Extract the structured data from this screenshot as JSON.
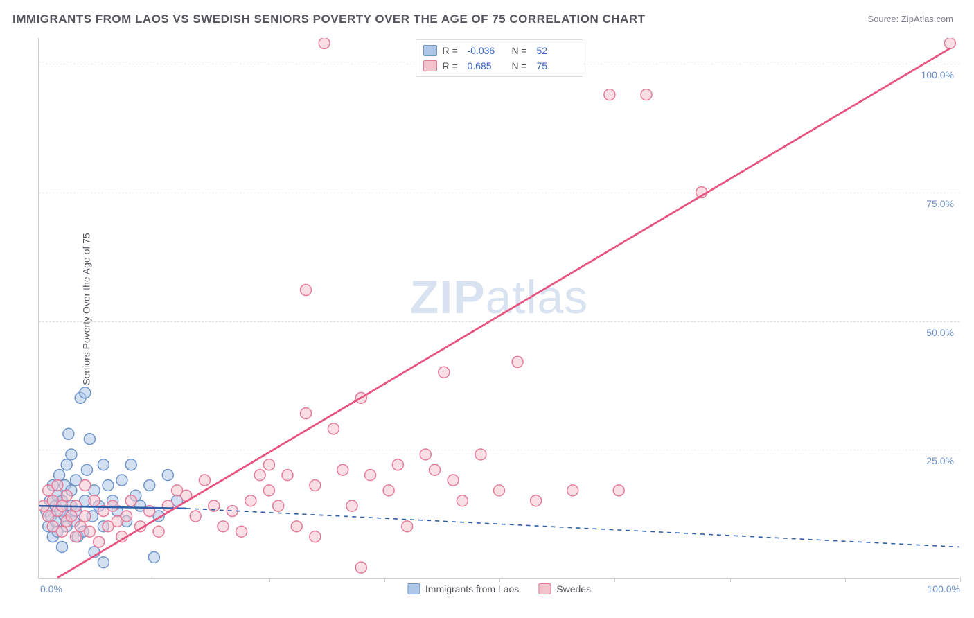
{
  "title": "IMMIGRANTS FROM LAOS VS SWEDISH SENIORS POVERTY OVER THE AGE OF 75 CORRELATION CHART",
  "source": "Source: ZipAtlas.com",
  "watermark_bold": "ZIP",
  "watermark_rest": "atlas",
  "chart": {
    "type": "scatter",
    "ylabel": "Seniors Poverty Over the Age of 75",
    "xlim": [
      0,
      100
    ],
    "ylim": [
      0,
      105
    ],
    "ytick_values": [
      25,
      50,
      75,
      100
    ],
    "ytick_labels": [
      "25.0%",
      "50.0%",
      "75.0%",
      "100.0%"
    ],
    "xtick_values": [
      0,
      12.5,
      25,
      37.5,
      50,
      62.5,
      75,
      87.5,
      100
    ],
    "xtick_labels_shown": {
      "0": "0.0%",
      "100": "100.0%"
    },
    "background_color": "#ffffff",
    "grid_color": "#dddddd",
    "axis_color": "#cccccc",
    "marker_radius": 8,
    "marker_stroke_width": 1.5,
    "series": [
      {
        "name": "Immigrants from Laos",
        "fill_color": "#aec6e8",
        "stroke_color": "#6f95c9",
        "fill_opacity": 0.55,
        "R": "-0.036",
        "N": "52",
        "trend": {
          "x1": 0,
          "y1": 14.0,
          "x2": 16,
          "y2": 13.5,
          "solid_until_x": 16,
          "dash_to_x": 100,
          "dash_y2": 6.0,
          "stroke": "#2f5fa8",
          "solid_width": 2.5,
          "dash_width": 1.6
        },
        "points": [
          [
            0.8,
            13
          ],
          [
            1.0,
            10
          ],
          [
            1.2,
            15
          ],
          [
            1.3,
            12
          ],
          [
            1.5,
            8
          ],
          [
            1.5,
            18
          ],
          [
            1.8,
            11
          ],
          [
            1.8,
            14
          ],
          [
            2.0,
            16
          ],
          [
            2.0,
            9
          ],
          [
            2.2,
            20
          ],
          [
            2.3,
            13
          ],
          [
            2.5,
            6
          ],
          [
            2.5,
            15
          ],
          [
            2.8,
            12
          ],
          [
            2.8,
            18
          ],
          [
            3.0,
            22
          ],
          [
            3.0,
            10
          ],
          [
            3.2,
            28
          ],
          [
            3.5,
            14
          ],
          [
            3.5,
            17
          ],
          [
            3.5,
            24
          ],
          [
            3.8,
            11
          ],
          [
            4.0,
            19
          ],
          [
            4.0,
            13
          ],
          [
            4.2,
            8
          ],
          [
            4.5,
            35
          ],
          [
            4.8,
            9
          ],
          [
            5.0,
            15
          ],
          [
            5.0,
            36
          ],
          [
            5.2,
            21
          ],
          [
            5.5,
            27
          ],
          [
            5.8,
            12
          ],
          [
            6.0,
            5
          ],
          [
            6.0,
            17
          ],
          [
            6.5,
            14
          ],
          [
            7.0,
            22
          ],
          [
            7.0,
            10
          ],
          [
            7.0,
            3
          ],
          [
            7.5,
            18
          ],
          [
            8.0,
            15
          ],
          [
            8.5,
            13
          ],
          [
            9.0,
            19
          ],
          [
            9.5,
            11
          ],
          [
            10.0,
            22
          ],
          [
            10.5,
            16
          ],
          [
            11.0,
            14
          ],
          [
            12.0,
            18
          ],
          [
            12.5,
            4
          ],
          [
            13.0,
            12
          ],
          [
            14.0,
            20
          ],
          [
            15.0,
            15
          ]
        ]
      },
      {
        "name": "Swedes",
        "fill_color": "#f4c2cd",
        "stroke_color": "#e67a99",
        "fill_opacity": 0.55,
        "R": "0.685",
        "N": "75",
        "trend": {
          "x1": 2,
          "y1": 0,
          "x2": 99,
          "y2": 103,
          "stroke": "#e75480",
          "width": 2.8
        },
        "points": [
          [
            0.5,
            14
          ],
          [
            1.0,
            12
          ],
          [
            1.0,
            17
          ],
          [
            1.5,
            10
          ],
          [
            1.5,
            15
          ],
          [
            2.0,
            13
          ],
          [
            2.0,
            18
          ],
          [
            2.5,
            9
          ],
          [
            2.5,
            14
          ],
          [
            3.0,
            11
          ],
          [
            3.0,
            16
          ],
          [
            3.5,
            12
          ],
          [
            4.0,
            8
          ],
          [
            4.0,
            14
          ],
          [
            4.5,
            10
          ],
          [
            5.0,
            18
          ],
          [
            5.0,
            12
          ],
          [
            5.5,
            9
          ],
          [
            6.0,
            15
          ],
          [
            6.5,
            7
          ],
          [
            7.0,
            13
          ],
          [
            7.5,
            10
          ],
          [
            8.0,
            14
          ],
          [
            8.5,
            11
          ],
          [
            9.0,
            8
          ],
          [
            9.5,
            12
          ],
          [
            10.0,
            15
          ],
          [
            11.0,
            10
          ],
          [
            12.0,
            13
          ],
          [
            13.0,
            9
          ],
          [
            14.0,
            14
          ],
          [
            15.0,
            17
          ],
          [
            16.0,
            16
          ],
          [
            17.0,
            12
          ],
          [
            18.0,
            19
          ],
          [
            19.0,
            14
          ],
          [
            20.0,
            10
          ],
          [
            21.0,
            13
          ],
          [
            22.0,
            9
          ],
          [
            23.0,
            15
          ],
          [
            24.0,
            20
          ],
          [
            25.0,
            17
          ],
          [
            25.0,
            22
          ],
          [
            26.0,
            14
          ],
          [
            27.0,
            20
          ],
          [
            28.0,
            10
          ],
          [
            29.0,
            56
          ],
          [
            29.0,
            32
          ],
          [
            30.0,
            8
          ],
          [
            30.0,
            18
          ],
          [
            31.0,
            104
          ],
          [
            32.0,
            29
          ],
          [
            33.0,
            21
          ],
          [
            34.0,
            14
          ],
          [
            35.0,
            35
          ],
          [
            35.0,
            2
          ],
          [
            36.0,
            20
          ],
          [
            38.0,
            17
          ],
          [
            39.0,
            22
          ],
          [
            40.0,
            10
          ],
          [
            42.0,
            24
          ],
          [
            43.0,
            21
          ],
          [
            44.0,
            40
          ],
          [
            45.0,
            19
          ],
          [
            46.0,
            15
          ],
          [
            48.0,
            24
          ],
          [
            50.0,
            17
          ],
          [
            52.0,
            42
          ],
          [
            54.0,
            15
          ],
          [
            58.0,
            17
          ],
          [
            62.0,
            94
          ],
          [
            63.0,
            17
          ],
          [
            66.0,
            94
          ],
          [
            72.0,
            75
          ],
          [
            99.0,
            104
          ]
        ]
      }
    ],
    "legend_bottom": [
      {
        "label": "Immigrants from Laos",
        "fill": "#aec6e8",
        "stroke": "#6f95c9"
      },
      {
        "label": "Swedes",
        "fill": "#f4c2cd",
        "stroke": "#e67a99"
      }
    ],
    "legend_top_labels": {
      "r": "R =",
      "n": "N ="
    }
  }
}
